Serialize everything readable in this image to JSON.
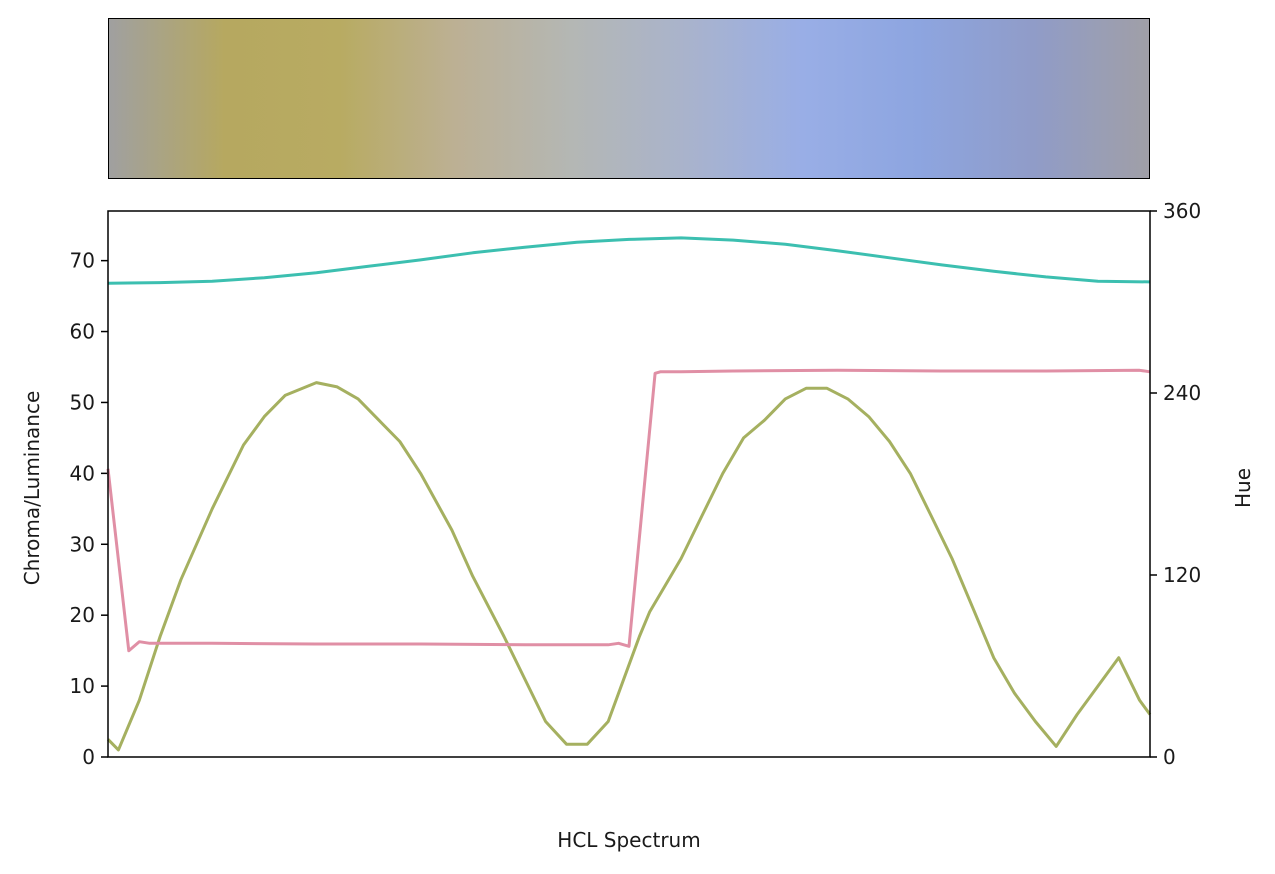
{
  "chart_data": {
    "type": "line",
    "title": "",
    "xlabel": "HCL Spectrum",
    "ylabel_left": "Chroma/Luminance",
    "ylabel_right": "Hue",
    "xlim": [
      0,
      100
    ],
    "ylim_left": [
      0,
      77
    ],
    "ylim_right": [
      0,
      360
    ],
    "left_ticks": [
      "0",
      "10",
      "20",
      "30",
      "40",
      "50",
      "60",
      "70"
    ],
    "right_ticks": [
      "0",
      "120",
      "240",
      "360"
    ],
    "colorbar_stops": [
      "#a0a0a0",
      "#b6a860",
      "#b8ab62",
      "#bcb094",
      "#b4b7b4",
      "#a9b3cc",
      "#99aee6",
      "#8da5e0",
      "#909cc8",
      "#a09fa7"
    ],
    "series": [
      {
        "name": "Luminance",
        "axis": "left",
        "color": "#3cbfb0",
        "x": [
          0,
          5,
          10,
          15,
          20,
          25,
          30,
          35,
          40,
          45,
          50,
          55,
          60,
          65,
          70,
          75,
          80,
          85,
          90,
          95,
          100
        ],
        "values": [
          66.8,
          66.9,
          67.1,
          67.6,
          68.3,
          69.2,
          70.1,
          71.1,
          71.9,
          72.6,
          73.0,
          73.2,
          72.9,
          72.3,
          71.4,
          70.4,
          69.4,
          68.5,
          67.7,
          67.1,
          67.0
        ]
      },
      {
        "name": "Chroma",
        "axis": "left",
        "color": "#a5b060",
        "x": [
          0,
          1,
          3,
          5,
          7,
          10,
          13,
          15,
          17,
          20,
          22,
          24,
          26,
          28,
          30,
          33,
          35,
          38,
          40,
          42,
          44,
          46,
          48,
          50,
          51,
          52,
          53,
          55,
          57,
          59,
          61,
          63,
          65,
          67,
          69,
          71,
          73,
          75,
          77,
          79,
          81,
          83,
          85,
          87,
          89,
          91,
          93,
          95,
          97,
          99,
          100
        ],
        "values": [
          2.5,
          1.0,
          8.0,
          17.0,
          25.0,
          35.0,
          44.0,
          48.0,
          51.0,
          52.8,
          52.2,
          50.5,
          47.5,
          44.5,
          40.0,
          32.0,
          25.5,
          17.0,
          11.0,
          5.0,
          1.8,
          1.8,
          5.0,
          13.0,
          17.0,
          20.5,
          23.0,
          28.0,
          34.0,
          40.0,
          45.0,
          47.5,
          50.5,
          52.0,
          52.0,
          50.5,
          48.0,
          44.5,
          40.0,
          34.0,
          28.0,
          21.0,
          14.0,
          9.0,
          5.0,
          1.5,
          6.0,
          10.0,
          14.0,
          8.0,
          6.0
        ]
      },
      {
        "name": "Hue",
        "axis": "right",
        "color": "#e08fa5",
        "x": [
          0,
          2,
          3,
          4,
          10,
          20,
          30,
          40,
          48,
          49,
          50,
          52.5,
          53,
          55,
          60,
          70,
          80,
          90,
          99,
          100
        ],
        "values": [
          190,
          70,
          76,
          75,
          75,
          74.5,
          74.5,
          74,
          74,
          75,
          73,
          253,
          254,
          254,
          254.5,
          255,
          254.5,
          254.5,
          255,
          254
        ]
      }
    ]
  }
}
